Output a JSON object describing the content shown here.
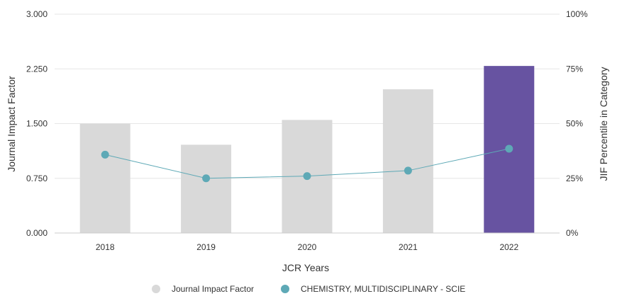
{
  "chart_data": {
    "type": "bar",
    "title": "",
    "categories": [
      "2018",
      "2019",
      "2020",
      "2021",
      "2022"
    ],
    "xlabel": "JCR Years",
    "ylabel": "Journal Impact Factor",
    "y2label": "JIF Percentile in Category",
    "ylim": [
      0,
      3.0
    ],
    "y2lim": [
      0,
      100
    ],
    "yticks": [
      "0.000",
      "0.750",
      "1.500",
      "2.250",
      "3.000"
    ],
    "y2ticks": [
      "0%",
      "25%",
      "50%",
      "75%",
      "100%"
    ],
    "grid": true,
    "legend_position": "bottom",
    "series": [
      {
        "name": "Journal Impact Factor",
        "type": "bar",
        "axis": "left",
        "values": [
          1.5,
          1.21,
          1.55,
          1.97,
          2.29
        ],
        "color": "#d9d9d9",
        "highlight_index": 4,
        "highlight_color": "#6753a1"
      },
      {
        "name": "CHEMISTRY, MULTIDISCIPLINARY - SCIE",
        "type": "line",
        "axis": "right",
        "values": [
          35.8,
          25.0,
          26.0,
          28.5,
          38.5
        ],
        "color": "#5ea9b6"
      }
    ]
  }
}
